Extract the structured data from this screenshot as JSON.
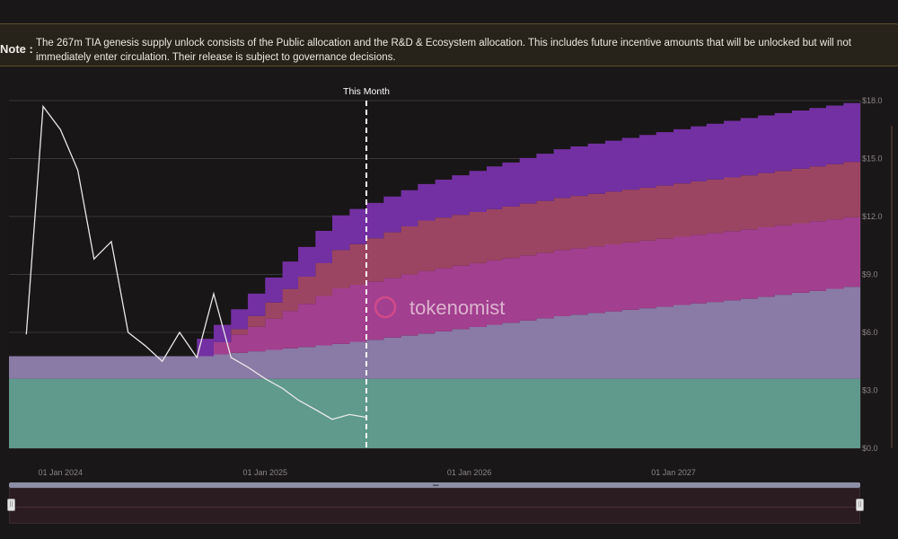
{
  "note": {
    "label": "Note :",
    "text": "The 267m TIA genesis supply unlock consists of the Public allocation and the R&D & Ecosystem allocation. This includes future incentive amounts that will be unlocked but will not immediately enter circulation. Their release is subject to governance decisions."
  },
  "watermark": "tokenomist",
  "colors": {
    "background": "#1a1718",
    "teal": "#5f9a8c",
    "lavender": "#8a7aa6",
    "magenta": "#a23f8f",
    "coral": "#9c4562",
    "purple": "#7330a2",
    "price_line": "#e8e8e8",
    "today_marker": "#ffffff"
  },
  "chart_data": {
    "type": "area",
    "stacked": true,
    "marker_label": "This Month",
    "x_range": [
      "2023-10-01",
      "2027-12-01"
    ],
    "x_ticks": [
      "01 Jan 2024",
      "01 Jan 2025",
      "01 Jan 2026",
      "01 Jan 2027"
    ],
    "y_right_ticks": [
      "$0.0",
      "$3.0",
      "$6.0",
      "$9.0",
      "$12.0",
      "$15.0",
      "$18.0"
    ],
    "y_right_range": [
      0,
      18
    ],
    "series": [
      {
        "color": "teal",
        "points": [
          [
            "2023-10-01",
            0.2
          ],
          [
            "2027-12-01",
            0.2
          ]
        ]
      },
      {
        "color": "lavender",
        "points": [
          [
            "2023-10-01",
            0.065
          ],
          [
            "2024-09-01",
            0.065
          ],
          [
            "2024-10-01",
            0.07
          ],
          [
            "2025-05-01",
            0.1
          ],
          [
            "2025-10-01",
            0.13
          ],
          [
            "2026-06-01",
            0.18
          ],
          [
            "2027-05-01",
            0.23
          ],
          [
            "2027-12-01",
            0.27
          ]
        ]
      },
      {
        "color": "magenta",
        "points": [
          [
            "2024-09-01",
            0.0
          ],
          [
            "2024-10-01",
            0.035
          ],
          [
            "2025-05-01",
            0.16
          ],
          [
            "2025-10-01",
            0.18
          ],
          [
            "2026-06-01",
            0.19
          ],
          [
            "2027-05-01",
            0.2
          ],
          [
            "2027-12-01",
            0.2
          ]
        ]
      },
      {
        "color": "coral",
        "points": [
          [
            "2024-09-01",
            0.0
          ],
          [
            "2024-10-01",
            0.0
          ],
          [
            "2024-11-01",
            0.015
          ],
          [
            "2025-05-01",
            0.11
          ],
          [
            "2025-10-01",
            0.145
          ],
          [
            "2026-06-01",
            0.15
          ],
          [
            "2027-05-01",
            0.155
          ],
          [
            "2027-12-01",
            0.16
          ]
        ]
      },
      {
        "color": "purple",
        "points": [
          [
            "2024-09-01",
            0.05
          ],
          [
            "2024-10-01",
            0.05
          ],
          [
            "2025-05-01",
            0.1
          ],
          [
            "2025-10-01",
            0.105
          ],
          [
            "2026-06-01",
            0.14
          ],
          [
            "2027-05-01",
            0.165
          ],
          [
            "2027-12-01",
            0.17
          ]
        ]
      }
    ],
    "price_series": {
      "points": [
        [
          "2023-11-01",
          5.9
        ],
        [
          "2023-12-01",
          17.7
        ],
        [
          "2024-01-01",
          16.5
        ],
        [
          "2024-02-01",
          14.4
        ],
        [
          "2024-03-01",
          9.8
        ],
        [
          "2024-04-01",
          10.7
        ],
        [
          "2024-05-01",
          6.0
        ],
        [
          "2024-06-01",
          5.3
        ],
        [
          "2024-07-01",
          4.5
        ],
        [
          "2024-08-01",
          6.0
        ],
        [
          "2024-09-01",
          4.7
        ],
        [
          "2024-10-01",
          8.0
        ],
        [
          "2024-11-01",
          4.7
        ],
        [
          "2024-12-01",
          4.2
        ],
        [
          "2025-01-01",
          3.6
        ],
        [
          "2025-02-01",
          3.1
        ],
        [
          "2025-03-01",
          2.5
        ],
        [
          "2025-04-01",
          2.0
        ],
        [
          "2025-05-01",
          1.5
        ],
        [
          "2025-06-01",
          1.75
        ],
        [
          "2025-07-01",
          1.6
        ]
      ]
    }
  }
}
